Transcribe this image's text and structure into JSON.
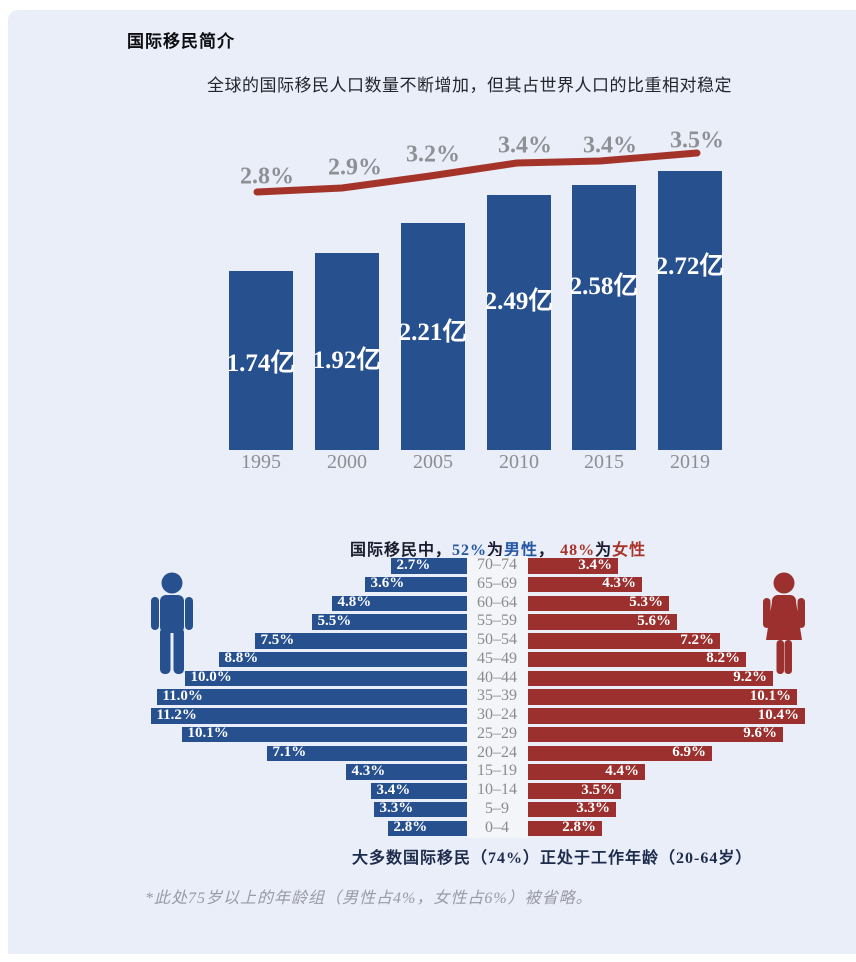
{
  "header": {
    "title": "国际移民简介",
    "subtitle": "全球的国际移民人口数量不断增加，但其占世界人口的比重相对稳定"
  },
  "colors": {
    "panel_bg": "#e9eef8",
    "bar_blue": "#27508f",
    "bar_red": "#9b302e",
    "line_red": "#a4342a",
    "gray_text": "#8f9096"
  },
  "chart_data": [
    {
      "id": "international-migrant-totals",
      "type": "bar",
      "title": "全球的国际移民人口数量不断增加，但其占世界人口的比重相对稳定",
      "categories": [
        "1995",
        "2000",
        "2005",
        "2010",
        "2015",
        "2019"
      ],
      "series": [
        {
          "name": "国际移民人口",
          "type": "bar",
          "unit": "亿",
          "values": [
            1.74,
            1.92,
            2.21,
            2.49,
            2.58,
            2.72
          ],
          "labels": [
            "1.74亿",
            "1.92亿",
            "2.21亿",
            "2.49亿",
            "2.58亿",
            "2.72亿"
          ]
        },
        {
          "name": "占世界人口比重",
          "type": "line",
          "unit": "%",
          "values": [
            2.8,
            2.9,
            3.2,
            3.4,
            3.4,
            3.5
          ],
          "labels": [
            "2.8%",
            "2.9%",
            "3.2%",
            "3.4%",
            "3.4%",
            "3.5%"
          ]
        }
      ],
      "ylim": [
        0,
        2.8
      ],
      "grid": false,
      "legend": "none"
    },
    {
      "id": "migrant-age-pyramid",
      "type": "bar",
      "subtype": "population-pyramid",
      "title_segments": [
        {
          "text": "国际移民中，",
          "role": "dark"
        },
        {
          "text": "52%",
          "role": "male"
        },
        {
          "text": "为",
          "role": "dark"
        },
        {
          "text": "男性",
          "role": "male"
        },
        {
          "text": "， ",
          "role": "dark"
        },
        {
          "text": "48%",
          "role": "female"
        },
        {
          "text": "为",
          "role": "dark"
        },
        {
          "text": "女性",
          "role": "female"
        }
      ],
      "categories": [
        "70–74",
        "65–69",
        "60–64",
        "55–59",
        "50–54",
        "45–49",
        "40–44",
        "35–39",
        "30–24",
        "25–29",
        "20–24",
        "15–19",
        "10–14",
        "5–9",
        "0–4"
      ],
      "series": [
        {
          "name": "男性",
          "values": [
            2.7,
            3.6,
            4.8,
            5.5,
            7.5,
            8.8,
            10.0,
            11.0,
            11.2,
            10.1,
            7.1,
            4.3,
            3.4,
            3.3,
            2.8
          ],
          "labels": [
            "2.7%",
            "3.6%",
            "4.8%",
            "5.5%",
            "7.5%",
            "8.8%",
            "10.0%",
            "11.0%",
            "11.2%",
            "10.1%",
            "7.1%",
            "4.3%",
            "3.4%",
            "3.3%",
            "2.8%"
          ]
        },
        {
          "name": "女性",
          "values": [
            3.4,
            4.3,
            5.3,
            5.6,
            7.2,
            8.2,
            9.2,
            10.1,
            10.4,
            9.6,
            6.9,
            4.4,
            3.5,
            3.3,
            2.8
          ],
          "labels": [
            "3.4%",
            "4.3%",
            "5.3%",
            "5.6%",
            "7.2%",
            "8.2%",
            "9.2%",
            "10.1%",
            "10.4%",
            "9.6%",
            "6.9%",
            "4.4%",
            "3.5%",
            "3.3%",
            "2.8%"
          ]
        }
      ],
      "caption": "大多数国际移民（74%）正处于工作年龄（20-64岁）",
      "footnote": "*此处75岁以上的年龄组（男性占4%，女性占6%）被省略。"
    }
  ]
}
